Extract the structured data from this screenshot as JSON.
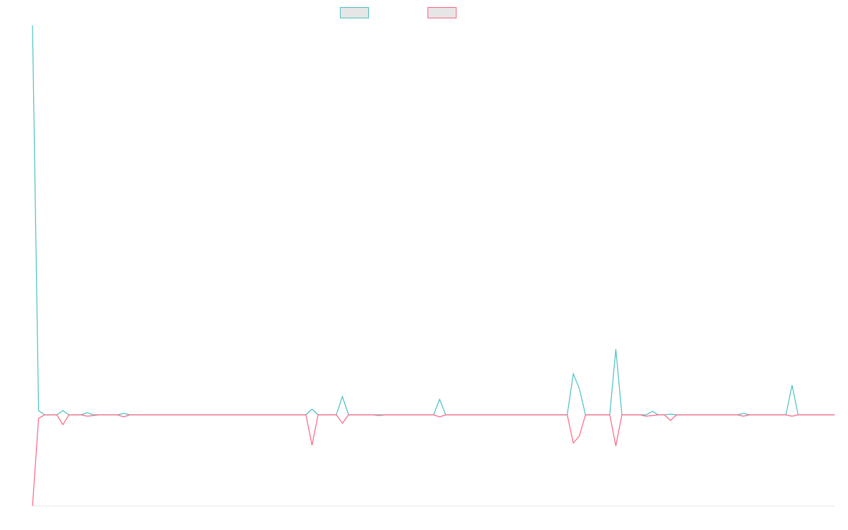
{
  "chart_data": {
    "type": "line",
    "legend": "top",
    "grid": false,
    "ylim": [
      -129,
      551
    ],
    "series": [
      {
        "color": "#4bc0c0",
        "values": [
          551,
          6,
          0,
          0,
          0,
          6,
          0,
          0,
          0,
          3,
          0,
          0,
          0,
          0,
          0,
          2,
          0,
          0,
          0,
          0,
          0,
          0,
          0,
          0,
          0,
          0,
          0,
          0,
          0,
          0,
          0,
          0,
          0,
          0,
          0,
          0,
          0,
          0,
          0,
          0,
          0,
          0,
          0,
          0,
          0,
          0,
          8,
          0,
          0,
          0,
          0,
          26,
          0,
          0,
          0,
          0,
          0,
          0,
          0,
          0,
          0,
          0,
          0,
          0,
          0,
          0,
          0,
          22,
          0,
          0,
          0,
          0,
          0,
          0,
          0,
          0,
          0,
          0,
          0,
          0,
          0,
          0,
          0,
          0,
          0,
          0,
          0,
          0,
          0,
          58,
          37,
          0,
          0,
          0,
          0,
          0,
          93,
          0,
          0,
          0,
          0,
          0,
          5,
          0,
          0,
          1,
          0,
          0,
          0,
          0,
          0,
          0,
          0,
          0,
          0,
          0,
          0,
          2,
          0,
          0,
          0,
          0,
          0,
          0,
          0,
          42,
          0,
          0,
          0,
          0,
          0,
          0,
          0
        ]
      },
      {
        "color": "#ff6384",
        "values": [
          -129,
          -5,
          0,
          0,
          0,
          -14,
          0,
          0,
          0,
          -2,
          -1,
          0,
          0,
          0,
          0,
          -3,
          0,
          0,
          0,
          0,
          0,
          0,
          0,
          0,
          0,
          0,
          0,
          0,
          0,
          0,
          0,
          0,
          0,
          0,
          0,
          0,
          0,
          0,
          0,
          0,
          0,
          0,
          0,
          0,
          0,
          0,
          -43,
          0,
          0,
          0,
          0,
          -12,
          0,
          0,
          0,
          0,
          0,
          -1,
          0,
          0,
          0,
          0,
          0,
          0,
          0,
          0,
          0,
          -3,
          0,
          0,
          0,
          0,
          0,
          0,
          0,
          0,
          0,
          0,
          0,
          0,
          0,
          0,
          0,
          0,
          0,
          0,
          0,
          0,
          0,
          -40,
          -30,
          0,
          0,
          0,
          0,
          0,
          -44,
          0,
          0,
          0,
          0,
          -2,
          -1,
          0,
          0,
          -8,
          0,
          0,
          0,
          0,
          0,
          0,
          0,
          0,
          0,
          0,
          0,
          -2,
          0,
          0,
          0,
          0,
          0,
          0,
          0,
          -2,
          0,
          0,
          0,
          0,
          0,
          0,
          0
        ]
      }
    ]
  }
}
